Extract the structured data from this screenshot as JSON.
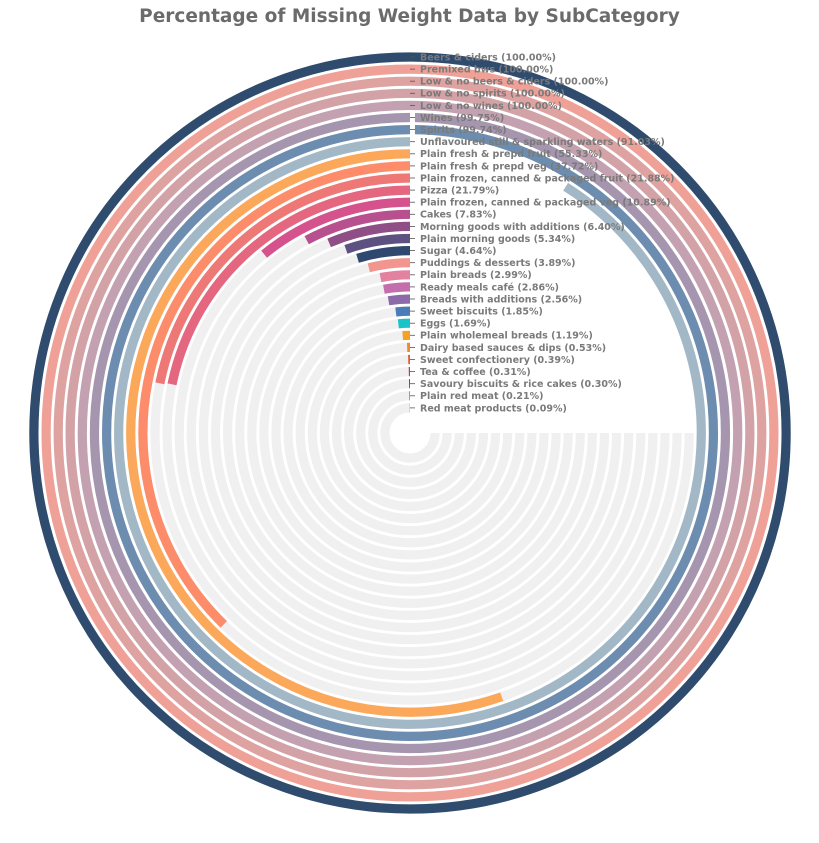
{
  "chart_data": {
    "type": "radial-bar",
    "title": "Percentage of Missing Weight Data by SubCategory",
    "xlabel": "",
    "ylabel": "",
    "value_range": [
      0,
      100
    ],
    "grid": true,
    "series": [
      {
        "label": "Beers & ciders (100.00%)",
        "value": 100.0,
        "color": "#2f4b6e"
      },
      {
        "label": "Premixed bws (100.00%)",
        "value": 100.0,
        "color": "#f0a197"
      },
      {
        "label": "Low & no beers & ciders (100.00%)",
        "value": 100.0,
        "color": "#dea2a0"
      },
      {
        "label": "Low & no spirits (100.00%)",
        "value": 100.0,
        "color": "#d2a2a6"
      },
      {
        "label": "Low & no wines (100.00%)",
        "value": 100.0,
        "color": "#c4a1b0"
      },
      {
        "label": "Wines (99.75%)",
        "value": 99.75,
        "color": "#a695ae"
      },
      {
        "label": "Spirits (99.74%)",
        "value": 99.74,
        "color": "#6d8db0"
      },
      {
        "label": "Unflavoured still & sparkling waters (91.03%)",
        "value": 91.03,
        "color": "#a3b8c7"
      },
      {
        "label": "Plain fresh & prepd fruit (55.33%)",
        "value": 55.33,
        "color": "#fca85a"
      },
      {
        "label": "Plain fresh & prepd veg (37.72%)",
        "value": 37.72,
        "color": "#fc8c6a"
      },
      {
        "label": "Plain frozen, canned & packaged fruit (21.88%)",
        "value": 21.88,
        "color": "#ed7875"
      },
      {
        "label": "Pizza (21.79%)",
        "value": 21.79,
        "color": "#e4667f"
      },
      {
        "label": "Plain frozen, canned & packaged veg (10.89%)",
        "value": 10.89,
        "color": "#d5528c"
      },
      {
        "label": "Cakes (7.83%)",
        "value": 7.83,
        "color": "#b84f8e"
      },
      {
        "label": "Morning goods with additions (6.40%)",
        "value": 6.4,
        "color": "#8f4f86"
      },
      {
        "label": "Plain morning goods (5.34%)",
        "value": 5.34,
        "color": "#5c5180"
      },
      {
        "label": "Sugar (4.64%)",
        "value": 4.64,
        "color": "#2e4870"
      },
      {
        "label": "Puddings & desserts (3.89%)",
        "value": 3.89,
        "color": "#f1958e"
      },
      {
        "label": "Plain breads (2.99%)",
        "value": 2.99,
        "color": "#e3829e"
      },
      {
        "label": "Ready meals café (2.86%)",
        "value": 2.86,
        "color": "#c46eae"
      },
      {
        "label": "Breads with additions (2.56%)",
        "value": 2.56,
        "color": "#8d6aa8"
      },
      {
        "label": "Sweet biscuits (1.85%)",
        "value": 1.85,
        "color": "#4a7db8"
      },
      {
        "label": "Eggs (1.69%)",
        "value": 1.69,
        "color": "#19c4c9"
      },
      {
        "label": "Plain wholemeal breads (1.19%)",
        "value": 1.19,
        "color": "#f4a224"
      },
      {
        "label": "Dairy based sauces & dips (0.53%)",
        "value": 0.53,
        "color": "#f2872d"
      },
      {
        "label": "Sweet confectionery (0.39%)",
        "value": 0.39,
        "color": "#e65a3a"
      },
      {
        "label": "Tea & coffee (0.31%)",
        "value": 0.31,
        "color": "#c83a4e"
      },
      {
        "label": "Savoury biscuits & rice cakes (0.30%)",
        "value": 0.3,
        "color": "#9e2f62"
      },
      {
        "label": "Plain red meat (0.21%)",
        "value": 0.21,
        "color": "#6e2c6e"
      },
      {
        "label": "Red meat products (0.09%)",
        "value": 0.09,
        "color": "#3c2a66"
      }
    ]
  }
}
